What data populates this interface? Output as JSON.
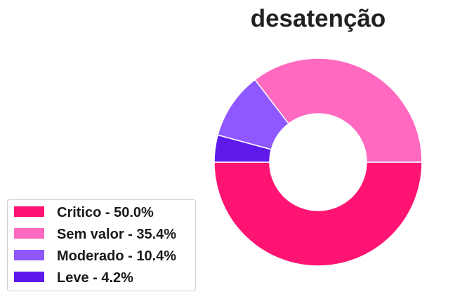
{
  "chart_data": {
    "type": "pie",
    "title": "desatenção",
    "donut": true,
    "start_angle_deg": 180,
    "direction": "counterclockwise",
    "legend_position": "lower-left",
    "slices": [
      {
        "label": "Critico",
        "value": 50.0,
        "legend_text": "Critico - 50.0%",
        "color": "#ff1473"
      },
      {
        "label": "Sem valor",
        "value": 35.4,
        "legend_text": "Sem valor - 35.4%",
        "color": "#ff69c0"
      },
      {
        "label": "Moderado",
        "value": 10.4,
        "legend_text": "Moderado - 10.4%",
        "color": "#8f57ff"
      },
      {
        "label": "Leve",
        "value": 4.2,
        "legend_text": "Leve - 4.2%",
        "color": "#5f1aeb"
      }
    ]
  }
}
